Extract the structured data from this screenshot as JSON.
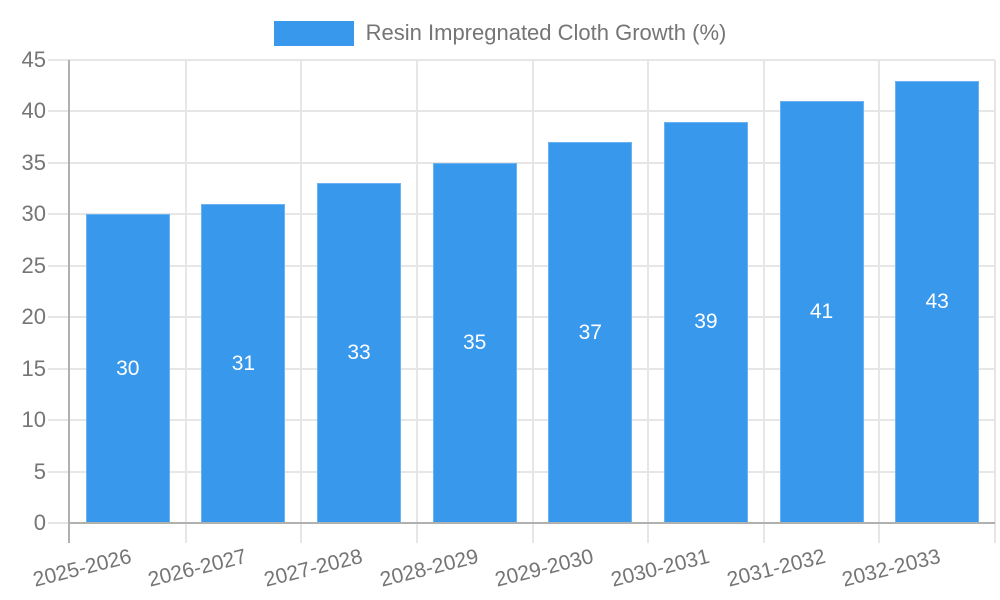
{
  "legend": {
    "label": "Resin Impregnated Cloth Growth (%)"
  },
  "chart_data": {
    "type": "bar",
    "title": "",
    "series": [
      {
        "name": "Resin Impregnated Cloth Growth (%)",
        "values": [
          30,
          31,
          33,
          35,
          37,
          39,
          41,
          43
        ]
      }
    ],
    "categories": [
      "2025-2026",
      "2026-2027",
      "2027-2028",
      "2028-2029",
      "2029-2030",
      "2030-2031",
      "2031-2032",
      "2032-2033"
    ],
    "bar_labels": [
      "30",
      "31",
      "33",
      "35",
      "37",
      "39",
      "41",
      "43"
    ],
    "xlabel": "",
    "ylabel": "",
    "ylim": [
      0,
      45
    ],
    "yticks": [
      0,
      5,
      10,
      15,
      20,
      25,
      30,
      35,
      40,
      45
    ],
    "grid": true,
    "legend_position": "top",
    "colors": {
      "bar": "#3898EC",
      "bar_label": "#FFFFFF",
      "axis": "#B0B0B0",
      "grid": "#E6E6E6",
      "tick_text": "#757575",
      "legend_text": "#757575",
      "background": "#FFFFFF"
    }
  }
}
